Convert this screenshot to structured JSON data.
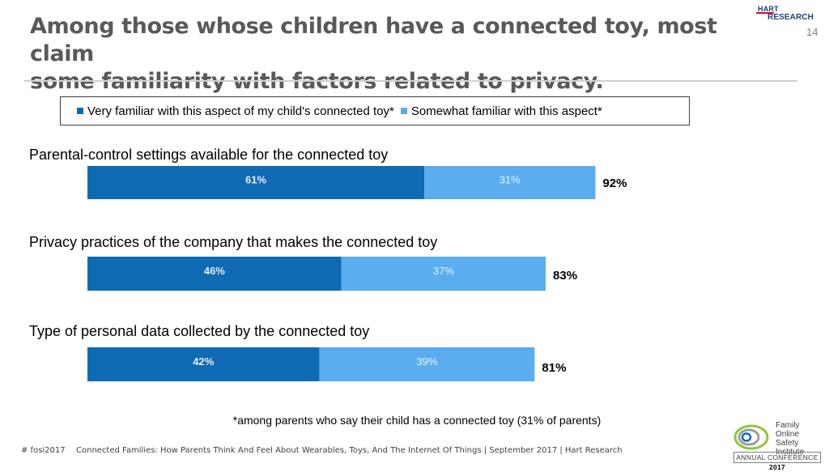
{
  "header": {
    "title_line1": "Among those whose children have a connected toy, most claim",
    "title_line2": "some familiarity with factors related to privacy.",
    "page_number": "14",
    "logo_line1": "HART",
    "logo_line2": "RESEARCH"
  },
  "colors": {
    "very": "#0f6ab4",
    "somewhat": "#5aaef0",
    "title": "#595959"
  },
  "chart_data": {
    "type": "bar",
    "orientation": "horizontal",
    "stacked": true,
    "unit": "%",
    "xlim": [
      0,
      100
    ],
    "grid": false,
    "legend_position": "top",
    "categories": [
      "Parental-control settings available for the connected toy",
      "Privacy practices of the company that makes the connected toy",
      "Type of personal data collected by the connected toy"
    ],
    "series": [
      {
        "name": "Very familiar with this aspect of my child's connected toy*",
        "values": [
          61,
          46,
          42
        ],
        "labels": [
          "61%",
          "46%",
          "42%"
        ]
      },
      {
        "name": "Somewhat familiar with this aspect*",
        "values": [
          31,
          37,
          39
        ],
        "labels": [
          "31%",
          "37%",
          "39%"
        ]
      }
    ],
    "totals": [
      92,
      83,
      81
    ],
    "total_labels": [
      "92%",
      "83%",
      "81%"
    ]
  },
  "footnote": "*among parents who say their child has a connected toy (31% of parents)",
  "footer": {
    "hashtag": "# fosi2017",
    "text": "Connected Families: How Parents Think And Feel About Wearables, Toys, And The Internet Of Things | September 2017 | Hart Research"
  },
  "fosi_logo": {
    "line1": "Family",
    "line2": "Online Safety",
    "line3": "Institute",
    "conference_prefix": "ANNUAL CONFERENCE",
    "conference_year": "2017"
  }
}
